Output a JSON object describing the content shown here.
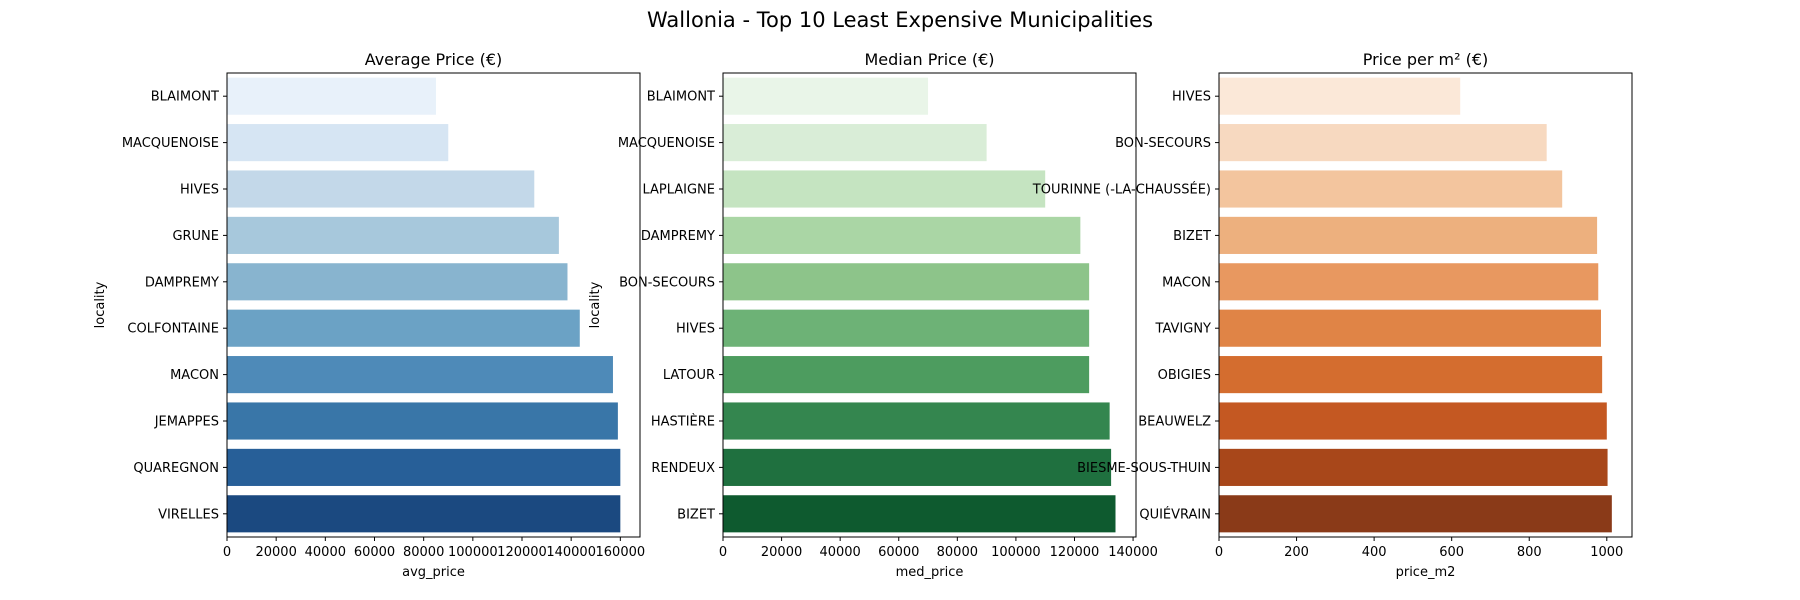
{
  "figure": {
    "title": "Wallonia - Top 10 Least Expensive Municipalities"
  },
  "chart_data": [
    {
      "type": "bar",
      "orientation": "horizontal",
      "title": "Average Price (€)",
      "xlabel": "avg_price",
      "ylabel": "locality",
      "categories": [
        "BLAIMONT",
        "MACQUENOISE",
        "HIVES",
        "GRUNE",
        "DAMPREMY",
        "COLFONTAINE",
        "MACON",
        "JEMAPPES",
        "QUAREGNON",
        "VIRELLES"
      ],
      "values": [
        85000,
        90000,
        125000,
        135000,
        138500,
        143500,
        157000,
        159000,
        160000,
        160000
      ],
      "xlim": [
        0,
        168000
      ],
      "xticks": [
        0,
        20000,
        40000,
        60000,
        80000,
        100000,
        120000,
        140000,
        160000
      ],
      "palette": [
        "#e8f1fa",
        "#d6e5f3",
        "#c3d8e9",
        "#a7c8dc",
        "#88b4cf",
        "#6ba2c5",
        "#4e8ab8",
        "#3976a8",
        "#275f98",
        "#1b4980"
      ]
    },
    {
      "type": "bar",
      "orientation": "horizontal",
      "title": "Median Price (€)",
      "xlabel": "med_price",
      "ylabel": "locality",
      "categories": [
        "BLAIMONT",
        "MACQUENOISE",
        "LAPLAIGNE",
        "DAMPREMY",
        "BON-SECOURS",
        "HIVES",
        "LATOUR",
        "HASTIÈRE",
        "RENDEUX",
        "BIZET"
      ],
      "values": [
        70000,
        90000,
        110000,
        122000,
        125000,
        125000,
        125000,
        132000,
        132500,
        134000
      ],
      "xlim": [
        0,
        141000
      ],
      "xticks": [
        0,
        20000,
        40000,
        60000,
        80000,
        100000,
        120000,
        140000
      ],
      "palette": [
        "#e9f5e8",
        "#d9edd7",
        "#c5e4c1",
        "#aad6a5",
        "#8dc48a",
        "#6db276",
        "#4d9c5f",
        "#34864f",
        "#1f703f",
        "#0e5a2f"
      ]
    },
    {
      "type": "bar",
      "orientation": "horizontal",
      "title": "Price per m² (€)",
      "xlabel": "price_m2",
      "ylabel": "",
      "categories": [
        "HIVES",
        "BON-SECOURS",
        "TOURINNE (-LA-CHAUSSÉE)",
        "BIZET",
        "MACON",
        "TAVIGNY",
        "OBIGIES",
        "BEAUWELZ",
        "BIESME-SOUS-THUIN",
        "QUIÉVRAIN"
      ],
      "values": [
        622,
        845,
        885,
        975,
        978,
        985,
        988,
        1000,
        1002,
        1013
      ],
      "xlim": [
        0,
        1065
      ],
      "xticks": [
        0,
        200,
        400,
        600,
        800,
        1000
      ],
      "palette": [
        "#fbe8d8",
        "#f7d9c0",
        "#f3c59e",
        "#edb07e",
        "#e89860",
        "#e08446",
        "#d46d2f",
        "#c45822",
        "#a8471a",
        "#8a3a18"
      ]
    }
  ]
}
